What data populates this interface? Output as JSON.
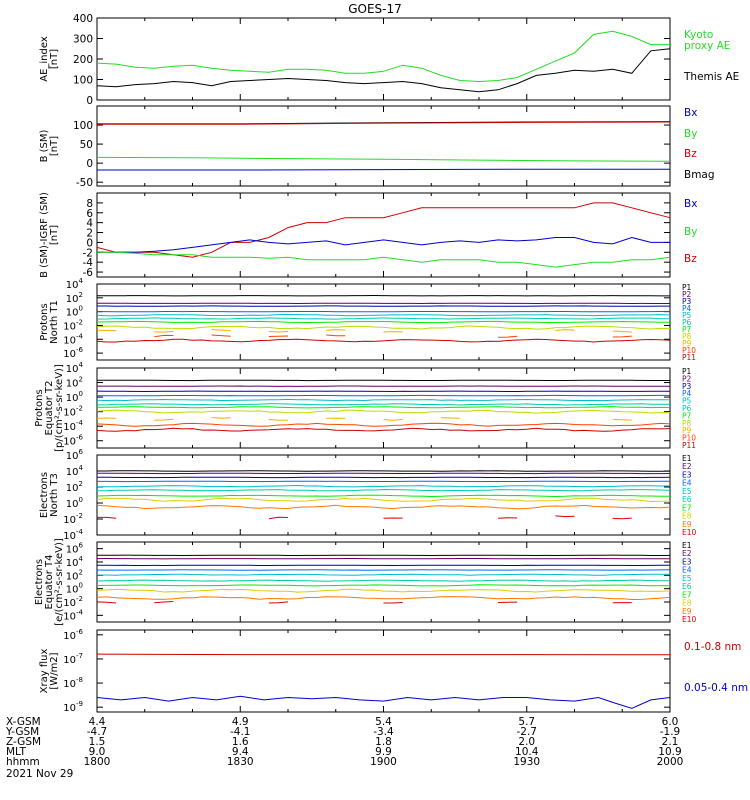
{
  "title": "GOES-17",
  "date_label": "2021 Nov 29",
  "colors": {
    "black": "#000000",
    "red": "#cc0000",
    "green": "#22dd22",
    "blue": "#0000cc",
    "p_colors": [
      "#000000",
      "#600060",
      "#0000aa",
      "#0066ff",
      "#00bbcc",
      "#00ccaa",
      "#00ee00",
      "#bbdd00",
      "#ffaa00",
      "#ff4400",
      "#cc0000"
    ],
    "e_colors": [
      "#000000",
      "#600060",
      "#0000aa",
      "#0066ff",
      "#00bbcc",
      "#00ccaa",
      "#00ee00",
      "#ddcc00",
      "#ff7700",
      "#dd0000"
    ]
  },
  "chart_data": [
    {
      "id": "ae",
      "type": "line",
      "ylabel": [
        "AE_index",
        "[nT]"
      ],
      "ylim": [
        0,
        400
      ],
      "scale": "linear",
      "ticks": [
        "400",
        "300",
        "200",
        "100",
        "0"
      ],
      "tick_values": [
        400,
        300,
        200,
        100,
        0
      ],
      "legend": [
        {
          "text": "Kyoto",
          "color": "green"
        },
        {
          "text": "proxy AE",
          "color": "green"
        },
        {
          "text": "Themis AE",
          "color": "black"
        }
      ],
      "series": [
        {
          "name": "Kyoto proxy AE",
          "color": "green",
          "x": [
            0,
            4,
            8,
            12,
            16,
            20,
            24,
            28,
            32,
            36,
            40,
            44,
            48,
            52,
            56,
            60,
            64,
            68,
            72,
            76,
            80,
            84,
            88,
            92,
            96,
            100,
            104,
            108,
            112,
            116,
            120
          ],
          "y": [
            180,
            175,
            160,
            155,
            165,
            170,
            155,
            145,
            140,
            135,
            150,
            150,
            145,
            130,
            130,
            140,
            170,
            155,
            120,
            95,
            90,
            95,
            110,
            150,
            190,
            230,
            320,
            335,
            310,
            270,
            270
          ]
        },
        {
          "name": "Themis AE",
          "color": "black",
          "x": [
            0,
            4,
            8,
            12,
            16,
            20,
            24,
            28,
            32,
            36,
            40,
            44,
            48,
            52,
            56,
            60,
            64,
            68,
            72,
            76,
            80,
            84,
            88,
            92,
            96,
            100,
            104,
            108,
            112,
            116,
            120
          ],
          "y": [
            70,
            65,
            75,
            80,
            90,
            85,
            70,
            90,
            95,
            100,
            105,
            100,
            95,
            85,
            80,
            85,
            90,
            80,
            60,
            50,
            40,
            50,
            80,
            120,
            130,
            145,
            140,
            150,
            130,
            240,
            250
          ]
        }
      ]
    },
    {
      "id": "b",
      "type": "line",
      "ylabel": [
        "B (SM)",
        "[nT]"
      ],
      "ylim": [
        -60,
        150
      ],
      "scale": "linear",
      "ticks": [
        "100",
        "50",
        "0",
        "-50"
      ],
      "tick_values": [
        100,
        50,
        0,
        -50
      ],
      "legend": [
        {
          "text": "Bx",
          "color": "blue"
        },
        {
          "text": "By",
          "color": "green"
        },
        {
          "text": "Bz",
          "color": "red"
        },
        {
          "text": "Bmag",
          "color": "black"
        }
      ],
      "series": [
        {
          "name": "Bmag",
          "color": "black",
          "x": [
            0,
            30,
            60,
            90,
            120
          ],
          "y": [
            103,
            103,
            106,
            108,
            109
          ]
        },
        {
          "name": "Bz",
          "color": "red",
          "x": [
            0,
            30,
            60,
            90,
            120
          ],
          "y": [
            102,
            102,
            105,
            107,
            108
          ]
        },
        {
          "name": "By",
          "color": "green",
          "x": [
            0,
            20,
            40,
            60,
            80,
            100,
            120
          ],
          "y": [
            15,
            14,
            12,
            10,
            8,
            6,
            5
          ]
        },
        {
          "name": "Bx",
          "color": "blue",
          "x": [
            0,
            30,
            60,
            90,
            120
          ],
          "y": [
            -18,
            -18,
            -17,
            -16,
            -16
          ]
        }
      ]
    },
    {
      "id": "db",
      "type": "line",
      "ylabel": [
        "B (SM)-IGRF (SM)",
        "[nT]"
      ],
      "ylim": [
        -7,
        10
      ],
      "scale": "linear",
      "ticks": [
        "8",
        "6",
        "4",
        "2",
        "0",
        "-2",
        "-4",
        "-6"
      ],
      "tick_values": [
        8,
        6,
        4,
        2,
        0,
        -2,
        -4,
        -6
      ],
      "legend": [
        {
          "text": "Bx",
          "color": "blue"
        },
        {
          "text": "By",
          "color": "green"
        },
        {
          "text": "Bz",
          "color": "red"
        }
      ],
      "series": [
        {
          "name": "Bz",
          "color": "red",
          "x": [
            0,
            4,
            8,
            12,
            16,
            20,
            24,
            28,
            32,
            36,
            40,
            44,
            48,
            52,
            56,
            60,
            64,
            68,
            72,
            76,
            80,
            84,
            88,
            92,
            96,
            100,
            104,
            108,
            112,
            116,
            120
          ],
          "y": [
            -1,
            -2,
            -2,
            -2,
            -2.5,
            -3,
            -2,
            0,
            0,
            1,
            3,
            4,
            4,
            5,
            5,
            5,
            6,
            7,
            7,
            7,
            7,
            7,
            7,
            7,
            7,
            7,
            8,
            8,
            7,
            6,
            5
          ]
        },
        {
          "name": "Bx",
          "color": "blue",
          "x": [
            0,
            4,
            8,
            12,
            16,
            20,
            24,
            28,
            32,
            36,
            40,
            44,
            48,
            52,
            56,
            60,
            64,
            68,
            72,
            76,
            80,
            84,
            88,
            92,
            96,
            100,
            104,
            108,
            112,
            116,
            120
          ],
          "y": [
            -2,
            -2,
            -2,
            -1.8,
            -1.5,
            -1,
            -0.5,
            0,
            0.5,
            0,
            -0.3,
            0,
            0.3,
            -0.5,
            0,
            0.5,
            0,
            -0.5,
            0,
            0.3,
            0,
            0.5,
            0.3,
            0.5,
            1,
            1,
            0,
            -0.3,
            1,
            0,
            0
          ]
        },
        {
          "name": "By",
          "color": "green",
          "x": [
            0,
            4,
            8,
            12,
            16,
            20,
            24,
            28,
            32,
            36,
            40,
            44,
            48,
            52,
            56,
            60,
            64,
            68,
            72,
            76,
            80,
            84,
            88,
            92,
            96,
            100,
            104,
            108,
            112,
            116,
            120
          ],
          "y": [
            -2,
            -2,
            -2.2,
            -2.5,
            -2.5,
            -2.5,
            -3,
            -3,
            -3,
            -3.2,
            -3,
            -3.5,
            -3.5,
            -3.5,
            -3.5,
            -3,
            -3.5,
            -4,
            -3.5,
            -3.5,
            -3.5,
            -4,
            -4,
            -4.5,
            -5,
            -4.5,
            -4,
            -4,
            -3.5,
            -3.5,
            -3
          ]
        }
      ]
    },
    {
      "id": "pn",
      "type": "line",
      "ylabel": [
        "Protons",
        "North T1"
      ],
      "ylim": [
        -7,
        4
      ],
      "scale": "log",
      "ticks": [
        "4",
        "2",
        "0",
        "-2",
        "-4",
        "-6"
      ],
      "tick_values": [
        4,
        2,
        0,
        -2,
        -4,
        -6
      ],
      "channels": [
        "P1",
        "P2",
        "P3",
        "P4",
        "P5",
        "P6",
        "P7",
        "P8",
        "P9",
        "P10",
        "P11"
      ],
      "levels": [
        2.3,
        1.2,
        0.8,
        0,
        -0.5,
        -1,
        -1.5,
        -2.3,
        -2.8,
        -3.5,
        -4.2
      ],
      "gaps": [
        8,
        9
      ]
    },
    {
      "id": "pe",
      "type": "line",
      "ylabel": [
        "Protons",
        "Equator T2",
        "[p/(cm²-s-sr-keV)]"
      ],
      "ylim": [
        -7,
        4
      ],
      "scale": "log",
      "ticks": [
        "4",
        "2",
        "0",
        "-2",
        "-4",
        "-6"
      ],
      "tick_values": [
        4,
        2,
        0,
        -2,
        -4,
        -6
      ],
      "channels": [
        "P1",
        "P2",
        "P3",
        "P4",
        "P5",
        "P6",
        "P7",
        "P8",
        "P9",
        "P10",
        "P11"
      ],
      "levels": [
        2.3,
        1.5,
        0.8,
        0.2,
        -0.4,
        -1,
        -1.4,
        -2,
        -3,
        -3.8,
        -4.5
      ],
      "gaps": [
        8
      ]
    },
    {
      "id": "en",
      "type": "line",
      "ylabel": [
        "Electrons",
        "North T3"
      ],
      "ylim": [
        -4,
        6
      ],
      "scale": "log",
      "ticks": [
        "6",
        "4",
        "2",
        "0",
        "-2",
        "-4"
      ],
      "tick_values": [
        6,
        4,
        2,
        0,
        -2,
        -4
      ],
      "channels": [
        "E1",
        "E2",
        "E3",
        "E4",
        "E5",
        "E6",
        "E7",
        "E8",
        "E9",
        "E10"
      ],
      "levels": [
        4,
        3.7,
        3.2,
        2.7,
        2.1,
        1.6,
        0.9,
        0.4,
        -0.5,
        -1.8
      ],
      "gaps": [
        9
      ]
    },
    {
      "id": "ee",
      "type": "line",
      "ylabel": [
        "Electrons",
        "Equator T4",
        "[e/(cm²-s-sr-keV)]"
      ],
      "ylim": [
        -5,
        7
      ],
      "scale": "log",
      "ticks": [
        "6",
        "4",
        "2",
        "0",
        "-2",
        "-4"
      ],
      "tick_values": [
        6,
        4,
        2,
        0,
        -2,
        -4
      ],
      "channels": [
        "E1",
        "E2",
        "E3",
        "E4",
        "E5",
        "E6",
        "E7",
        "E8",
        "E9",
        "E10"
      ],
      "levels": [
        5,
        4.5,
        3.5,
        2.8,
        2.1,
        1.2,
        0.5,
        -0.3,
        -1.4,
        -2
      ],
      "gaps": [
        9
      ]
    },
    {
      "id": "xr",
      "type": "line",
      "ylabel": [
        "Xray flux",
        "[W/m2]"
      ],
      "ylim": [
        -9.2,
        -5.8
      ],
      "scale": "log",
      "ticks": [
        "-6",
        "-7",
        "-8",
        "-9"
      ],
      "tick_values": [
        -6,
        -7,
        -8,
        -9
      ],
      "legend": [
        {
          "text": "0.1-0.8 nm",
          "color": "red"
        },
        {
          "text": "0.05-0.4 nm",
          "color": "blue"
        }
      ],
      "series": [
        {
          "name": "0.1-0.8 nm",
          "color": "red",
          "x": [
            0,
            30,
            60,
            90,
            120
          ],
          "y": [
            -6.8,
            -6.82,
            -6.82,
            -6.82,
            -6.83
          ]
        },
        {
          "name": "0.05-0.4 nm",
          "color": "blue",
          "x": [
            0,
            5,
            10,
            15,
            20,
            25,
            30,
            35,
            40,
            45,
            50,
            55,
            60,
            65,
            70,
            75,
            80,
            85,
            90,
            95,
            100,
            105,
            108,
            112,
            116,
            120
          ],
          "y": [
            -8.6,
            -8.7,
            -8.6,
            -8.75,
            -8.6,
            -8.7,
            -8.55,
            -8.7,
            -8.6,
            -8.65,
            -8.6,
            -8.7,
            -8.75,
            -8.6,
            -8.7,
            -8.6,
            -8.7,
            -8.6,
            -8.6,
            -8.7,
            -8.75,
            -8.6,
            -8.8,
            -9.05,
            -8.7,
            -8.6
          ]
        }
      ]
    }
  ],
  "x_axis": {
    "xlim": [
      0,
      120
    ],
    "major_ticks": [
      0,
      30,
      60,
      90,
      120
    ],
    "rows": [
      {
        "label": "X-GSM",
        "values": [
          "4.4",
          "4.9",
          "5.4",
          "5.7",
          "6.0"
        ]
      },
      {
        "label": "Y-GSM",
        "values": [
          "-4.7",
          "-4.1",
          "-3.4",
          "-2.7",
          "-1.9"
        ]
      },
      {
        "label": "Z-GSM",
        "values": [
          "1.5",
          "1.6",
          "1.8",
          "2.0",
          "2.1"
        ]
      },
      {
        "label": "MLT",
        "values": [
          "9.0",
          "9.4",
          "9.9",
          "10.4",
          "10.9"
        ]
      },
      {
        "label": "hhmm",
        "values": [
          "1800",
          "1830",
          "1900",
          "1930",
          "2000"
        ]
      }
    ]
  }
}
